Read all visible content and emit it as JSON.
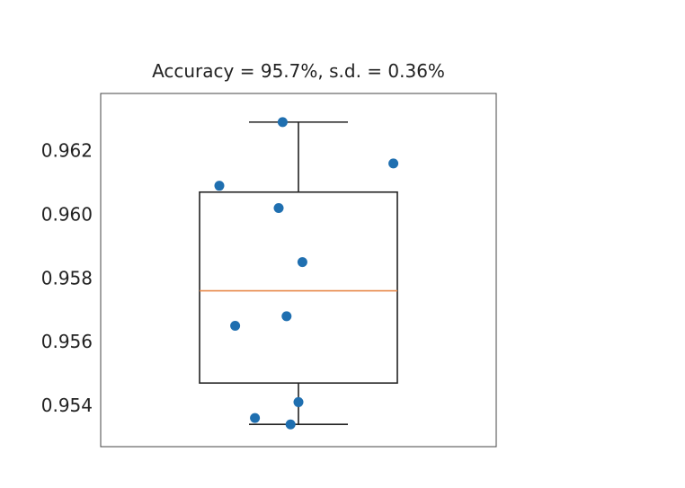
{
  "chart_data": {
    "type": "box",
    "title": "Accuracy = 95.7%, s.d. = 0.36%",
    "xlabel": "",
    "ylabel": "",
    "ylim": [
      0.9527,
      0.9638
    ],
    "yticks": [
      0.954,
      0.956,
      0.958,
      0.96,
      0.962
    ],
    "ytick_labels": [
      "0.954",
      "0.956",
      "0.958",
      "0.960",
      "0.962"
    ],
    "grid": false,
    "box": {
      "min": 0.9534,
      "q1": 0.9547,
      "median": 0.9576,
      "q3": 0.9607,
      "max": 0.9629
    },
    "points": [
      {
        "x": 0.96,
        "y": 0.9629
      },
      {
        "x": 1.24,
        "y": 0.9616
      },
      {
        "x": 0.8,
        "y": 0.9609
      },
      {
        "x": 0.95,
        "y": 0.9602
      },
      {
        "x": 1.01,
        "y": 0.9585
      },
      {
        "x": 0.97,
        "y": 0.9568
      },
      {
        "x": 0.84,
        "y": 0.9565
      },
      {
        "x": 1.0,
        "y": 0.9541
      },
      {
        "x": 0.89,
        "y": 0.9536
      },
      {
        "x": 0.98,
        "y": 0.9534
      }
    ],
    "colors": {
      "box": "#222222",
      "median": "#e8894a",
      "points": "#1f6fb0",
      "frame": "#444444"
    }
  }
}
